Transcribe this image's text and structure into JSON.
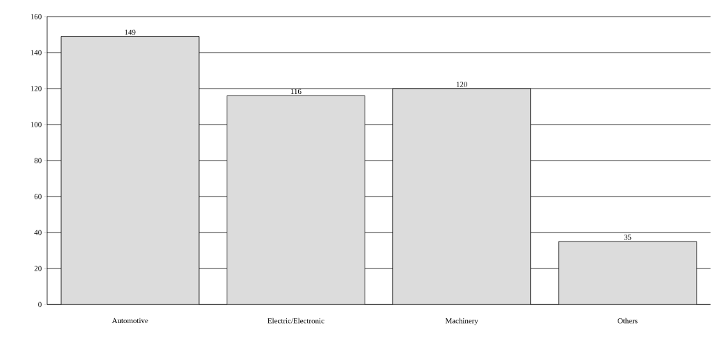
{
  "chart_data": {
    "type": "bar",
    "categories": [
      "Automotive",
      "Electric/Electronic",
      "Machinery",
      "Others"
    ],
    "values": [
      149,
      116,
      120,
      35
    ],
    "color": "#dcdcdc",
    "ylim": [
      0,
      160
    ],
    "yticks": [
      0,
      20,
      40,
      60,
      80,
      100,
      120,
      140,
      160
    ],
    "grid": "y",
    "data_labels": true
  }
}
